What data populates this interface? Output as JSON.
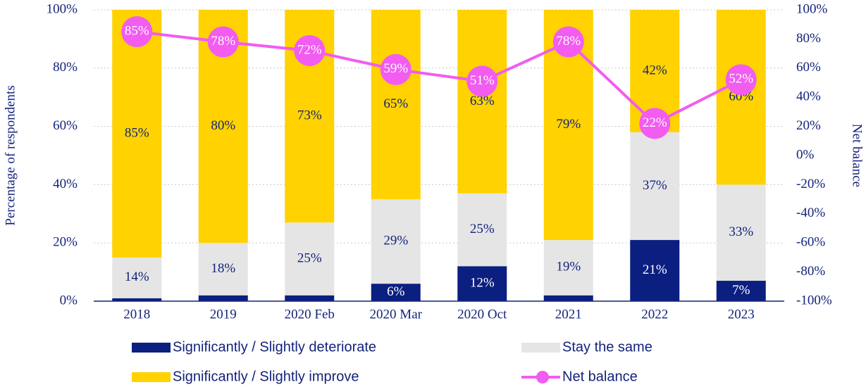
{
  "chart_data": {
    "type": "stacked-bar-line",
    "categories": [
      "2018",
      "2019",
      "2020 Feb",
      "2020 Mar",
      "2020 Oct",
      "2021",
      "2022",
      "2023"
    ],
    "series": [
      {
        "name": "Significantly / Slightly deteriorate",
        "color": "#0b1f80",
        "values": [
          1,
          2,
          2,
          6,
          12,
          2,
          21,
          7
        ],
        "value_labels": [
          null,
          null,
          null,
          "6%",
          "12%",
          null,
          "21%",
          "7%"
        ]
      },
      {
        "name": "Stay the same",
        "color": "#e5e5e5",
        "values": [
          14,
          18,
          25,
          29,
          25,
          19,
          37,
          33
        ],
        "value_labels": [
          "14%",
          "18%",
          "25%",
          "29%",
          "25%",
          "19%",
          "37%",
          "33%"
        ]
      },
      {
        "name": "Significantly / Slightly improve",
        "color": "#ffd200",
        "values": [
          85,
          80,
          73,
          65,
          63,
          79,
          42,
          60
        ],
        "value_labels": [
          "85%",
          "80%",
          "73%",
          "65%",
          "63%",
          "79%",
          "42%",
          "60%"
        ]
      },
      {
        "name": "Net balance",
        "color": "#f25cf0",
        "axis": "y2",
        "type": "line",
        "values": [
          85,
          78,
          72,
          59,
          51,
          78,
          22,
          52
        ],
        "value_labels": [
          "85%",
          "78%",
          "72%",
          "59%",
          "51%",
          "78%",
          "22%",
          "52%"
        ]
      }
    ],
    "ylabel": "Percentage of respondents",
    "y2label": "Net balance",
    "ylim": [
      0,
      100
    ],
    "yticks": [
      {
        "value": 0,
        "label": "0%"
      },
      {
        "value": 20,
        "label": "20%"
      },
      {
        "value": 40,
        "label": "40%"
      },
      {
        "value": 60,
        "label": "60%"
      },
      {
        "value": 80,
        "label": "80%"
      },
      {
        "value": 100,
        "label": "100%"
      }
    ],
    "y2lim": [
      -100,
      100
    ],
    "y2ticks": [
      {
        "value": -100,
        "label": "-100%"
      },
      {
        "value": -80,
        "label": "-80%"
      },
      {
        "value": -60,
        "label": "-60%"
      },
      {
        "value": -40,
        "label": "-40%"
      },
      {
        "value": -20,
        "label": "-20%"
      },
      {
        "value": 0,
        "label": "0%"
      },
      {
        "value": 20,
        "label": "20%"
      },
      {
        "value": 40,
        "label": "40%"
      },
      {
        "value": 60,
        "label": "60%"
      },
      {
        "value": 80,
        "label": "80%"
      },
      {
        "value": 100,
        "label": "100%"
      }
    ],
    "grid": true,
    "legend": "bottom"
  }
}
